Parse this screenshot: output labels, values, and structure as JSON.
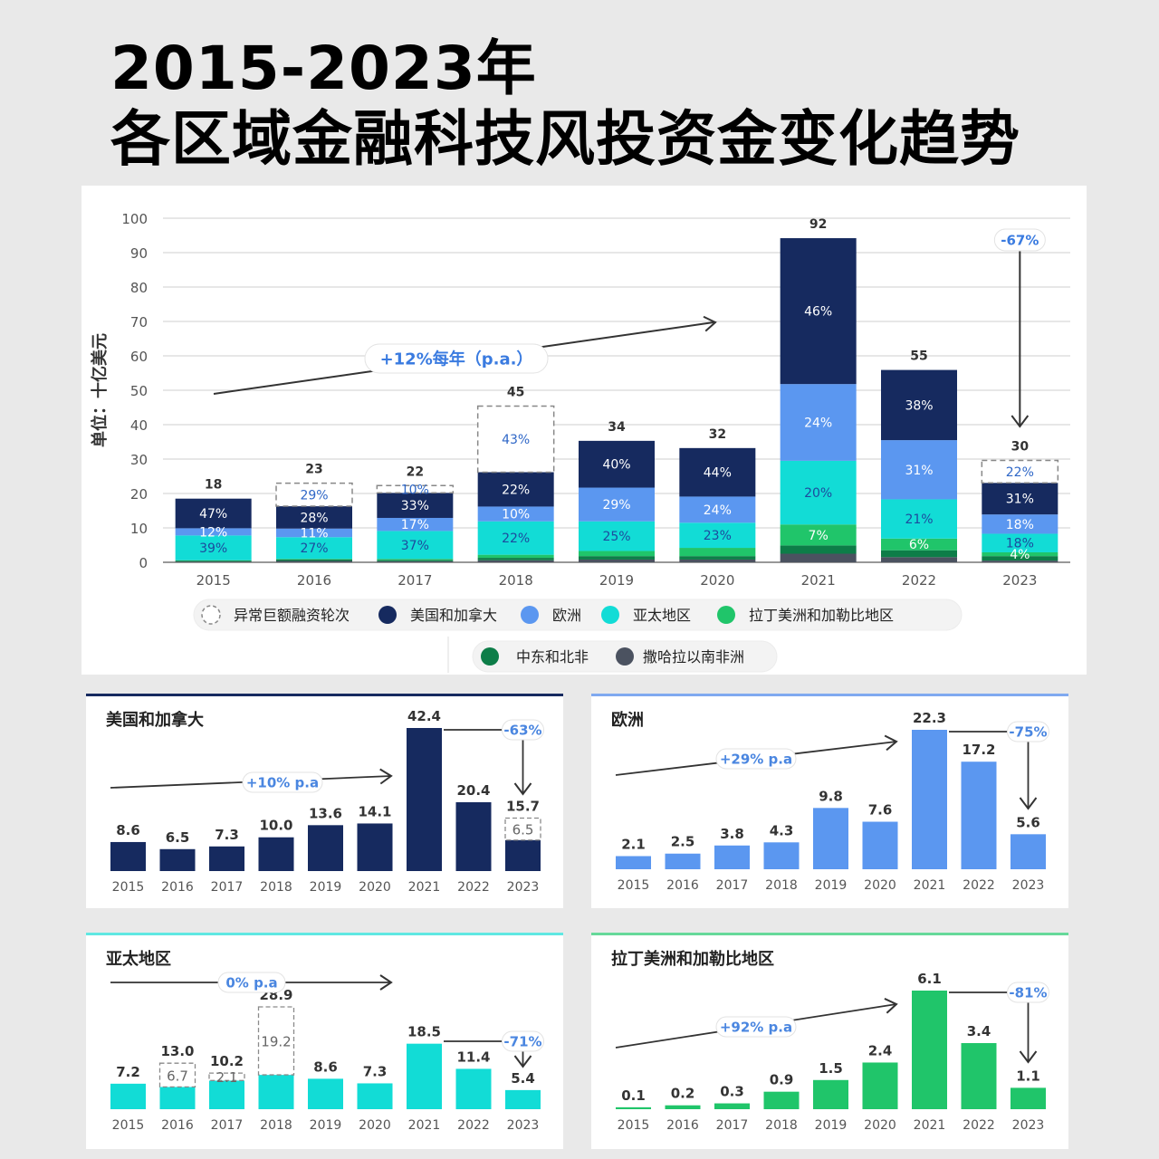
{
  "title": {
    "line1": "2015-2023年",
    "line2": "各区域金融科技风投资金变化趋势"
  },
  "colors": {
    "anomaly": "#ffffff",
    "na": "#162a5f",
    "eu": "#5b97f0",
    "apac": "#12dcd6",
    "latam": "#20c56a",
    "mena": "#0d7d48",
    "ssa": "#4b5260"
  },
  "chart_data": [
    {
      "type": "bar",
      "stacked": true,
      "ylabel": "单位：十亿美元",
      "ylim": [
        0,
        100
      ],
      "yticks": [
        "0",
        "10",
        "20",
        "30",
        "40",
        "50",
        "60",
        "70",
        "80",
        "90",
        "100"
      ],
      "categories": [
        "2015",
        "2016",
        "2017",
        "2018",
        "2019",
        "2020",
        "2021",
        "2022",
        "2023"
      ],
      "totals": [
        "18",
        "23",
        "22",
        "45",
        "34",
        "32",
        "92",
        "55",
        "30"
      ],
      "series": [
        {
          "key": "ssa",
          "name": "撒哈拉以南非洲",
          "values": [
            0.2,
            0.4,
            0.3,
            0.6,
            0.8,
            0.8,
            2.5,
            1.5,
            0.5
          ]
        },
        {
          "key": "mena",
          "name": "中东和北非",
          "values": [
            0.3,
            0.4,
            0.4,
            0.7,
            1.0,
            1.0,
            2.4,
            2.0,
            1.3
          ]
        },
        {
          "key": "latam",
          "name": "拉丁美洲和加勒比地区",
          "values": [
            0.1,
            0.2,
            0.3,
            0.9,
            1.5,
            2.4,
            6.1,
            3.4,
            1.1
          ]
        },
        {
          "key": "apac",
          "name": "亚太地区",
          "values": [
            7.2,
            6.3,
            8.1,
            9.7,
            8.6,
            7.3,
            18.5,
            11.4,
            5.4
          ]
        },
        {
          "key": "eu",
          "name": "欧洲",
          "values": [
            2.1,
            2.5,
            3.8,
            4.3,
            9.8,
            7.6,
            22.3,
            17.2,
            5.6
          ]
        },
        {
          "key": "na",
          "name": "美国和加拿大",
          "values": [
            8.6,
            6.5,
            7.3,
            10.0,
            13.6,
            14.1,
            42.4,
            20.4,
            9.2
          ]
        },
        {
          "key": "anomaly",
          "name": "异常巨额融资轮次",
          "values": [
            0,
            6.7,
            2.1,
            19.2,
            0,
            0,
            0,
            0,
            6.5
          ]
        }
      ],
      "segment_labels": [
        {
          "ci": 0,
          "si": 3,
          "text": "39%"
        },
        {
          "ci": 0,
          "si": 4,
          "text": "12%"
        },
        {
          "ci": 0,
          "si": 5,
          "text": "47%"
        },
        {
          "ci": 1,
          "si": 3,
          "text": "27%"
        },
        {
          "ci": 1,
          "si": 4,
          "text": "11%"
        },
        {
          "ci": 1,
          "si": 5,
          "text": "28%"
        },
        {
          "ci": 1,
          "si": 6,
          "text": "29%"
        },
        {
          "ci": 2,
          "si": 3,
          "text": "37%"
        },
        {
          "ci": 2,
          "si": 4,
          "text": "17%"
        },
        {
          "ci": 2,
          "si": 5,
          "text": "33%"
        },
        {
          "ci": 2,
          "si": 6,
          "text": "10%"
        },
        {
          "ci": 3,
          "si": 3,
          "text": "22%"
        },
        {
          "ci": 3,
          "si": 4,
          "text": "10%"
        },
        {
          "ci": 3,
          "si": 5,
          "text": "22%"
        },
        {
          "ci": 3,
          "si": 6,
          "text": "43%"
        },
        {
          "ci": 4,
          "si": 3,
          "text": "25%"
        },
        {
          "ci": 4,
          "si": 4,
          "text": "29%"
        },
        {
          "ci": 4,
          "si": 5,
          "text": "40%"
        },
        {
          "ci": 5,
          "si": 3,
          "text": "23%"
        },
        {
          "ci": 5,
          "si": 4,
          "text": "24%"
        },
        {
          "ci": 5,
          "si": 5,
          "text": "44%"
        },
        {
          "ci": 6,
          "si": 2,
          "text": "7%"
        },
        {
          "ci": 6,
          "si": 3,
          "text": "20%"
        },
        {
          "ci": 6,
          "si": 4,
          "text": "24%"
        },
        {
          "ci": 6,
          "si": 5,
          "text": "46%"
        },
        {
          "ci": 7,
          "si": 2,
          "text": "6%"
        },
        {
          "ci": 7,
          "si": 3,
          "text": "21%"
        },
        {
          "ci": 7,
          "si": 4,
          "text": "31%"
        },
        {
          "ci": 7,
          "si": 5,
          "text": "38%"
        },
        {
          "ci": 8,
          "si": 2,
          "text": "4%"
        },
        {
          "ci": 8,
          "si": 3,
          "text": "18%"
        },
        {
          "ci": 8,
          "si": 4,
          "text": "18%"
        },
        {
          "ci": 8,
          "si": 5,
          "text": "31%"
        },
        {
          "ci": 8,
          "si": 6,
          "text": "22%"
        }
      ],
      "trend_label": "+12%每年（p.a.）",
      "change_label": "-67%",
      "legend": [
        "异常巨额融资轮次",
        "美国和加拿大",
        "欧洲",
        "亚太地区",
        "拉丁美洲和加勒比地区",
        "中东和北非",
        "撒哈拉以南非洲"
      ]
    },
    {
      "type": "bar",
      "title": "美国和加拿大",
      "color": "#162a5f",
      "categories": [
        "2015",
        "2016",
        "2017",
        "2018",
        "2019",
        "2020",
        "2021",
        "2022",
        "2023"
      ],
      "values": [
        8.6,
        6.5,
        7.3,
        10.0,
        13.6,
        14.1,
        42.4,
        20.4,
        15.7
      ],
      "labels": [
        "8.6",
        "6.5",
        "7.3",
        "10.0",
        "13.6",
        "14.1",
        "42.4",
        "20.4",
        "15.7"
      ],
      "anomaly": [
        0,
        0,
        0,
        0,
        0,
        0,
        0,
        0,
        6.5
      ],
      "anomaly_labels": [
        "",
        "",
        "",
        "",
        "",
        "",
        "",
        "",
        "6.5"
      ],
      "trend_label": "+10% p.a",
      "change_label": "-63%"
    },
    {
      "type": "bar",
      "title": "欧洲",
      "color": "#5b97f0",
      "categories": [
        "2015",
        "2016",
        "2017",
        "2018",
        "2019",
        "2020",
        "2021",
        "2022",
        "2023"
      ],
      "values": [
        2.1,
        2.5,
        3.8,
        4.3,
        9.8,
        7.6,
        22.3,
        17.2,
        5.6
      ],
      "labels": [
        "2.1",
        "2.5",
        "3.8",
        "4.3",
        "9.8",
        "7.6",
        "22.3",
        "17.2",
        "5.6"
      ],
      "anomaly": [
        0,
        0,
        0,
        0,
        0,
        0,
        0,
        0,
        0
      ],
      "anomaly_labels": [
        "",
        "",
        "",
        "",
        "",
        "",
        "",
        "",
        ""
      ],
      "trend_label": "+29% p.a",
      "change_label": "-75%"
    },
    {
      "type": "bar",
      "title": "亚太地区",
      "color": "#12dcd6",
      "categories": [
        "2015",
        "2016",
        "2017",
        "2018",
        "2019",
        "2020",
        "2021",
        "2022",
        "2023"
      ],
      "values": [
        7.2,
        13.0,
        10.2,
        28.9,
        8.6,
        7.3,
        18.5,
        11.4,
        5.4
      ],
      "labels": [
        "7.2",
        "13.0",
        "10.2",
        "28.9",
        "8.6",
        "7.3",
        "18.5",
        "11.4",
        "5.4"
      ],
      "anomaly": [
        0,
        6.7,
        2.1,
        19.2,
        0,
        0,
        0,
        0,
        0
      ],
      "anomaly_labels": [
        "",
        "6.7",
        "2.1",
        "19.2",
        "",
        "",
        "",
        "",
        ""
      ],
      "trend_label": "0% p.a",
      "change_label": "-71%"
    },
    {
      "type": "bar",
      "title": "拉丁美洲和加勒比地区",
      "color": "#20c56a",
      "categories": [
        "2015",
        "2016",
        "2017",
        "2018",
        "2019",
        "2020",
        "2021",
        "2022",
        "2023"
      ],
      "values": [
        0.1,
        0.2,
        0.3,
        0.9,
        1.5,
        2.4,
        6.1,
        3.4,
        1.1
      ],
      "labels": [
        "0.1",
        "0.2",
        "0.3",
        "0.9",
        "1.5",
        "2.4",
        "6.1",
        "3.4",
        "1.1"
      ],
      "anomaly": [
        0,
        0,
        0,
        0,
        0,
        0,
        0,
        0,
        0
      ],
      "anomaly_labels": [
        "",
        "",
        "",
        "",
        "",
        "",
        "",
        "",
        ""
      ],
      "trend_label": "+92% p.a",
      "change_label": "-81%"
    }
  ]
}
